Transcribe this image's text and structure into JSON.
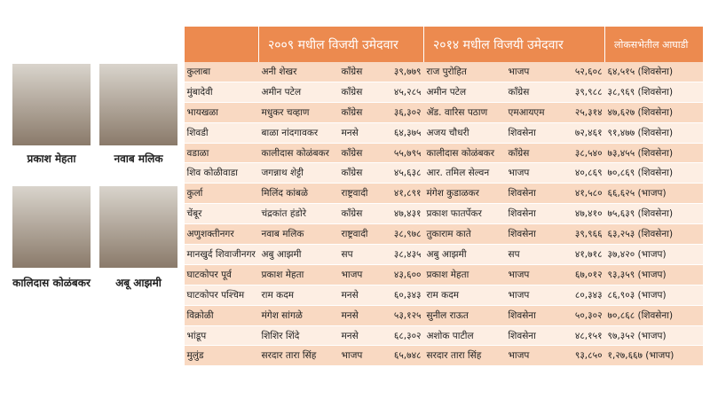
{
  "header": {
    "columns": [
      "२००९ मधील विजयी उमेदवार",
      "२०१४ मधील विजयी उमेदवार",
      "लोकसभेतील आघाडी"
    ]
  },
  "photos": [
    {
      "name": "प्रकाश मेहता"
    },
    {
      "name": "नवाब मलिक"
    },
    {
      "name": "कालिदास कोळंबकर"
    },
    {
      "name": "अबू आझमी"
    }
  ],
  "table": {
    "rows": [
      [
        "कुलाबा",
        "अनी शेखर",
        "काँग्रेस",
        "३९,७७९",
        "राज पुरोहित",
        "भाजप",
        "५२,६०८",
        "६४,५१५ (शिवसेना)"
      ],
      [
        "मुंबादेवी",
        "अमीन पटेल",
        "काँग्रेस",
        "४५,२८५",
        "अमीन पटेल",
        "काँग्रेस",
        "३९,९८८",
        "३८,९६९ (शिवसेना)"
      ],
      [
        "भायखळा",
        "मधुकर चव्हाण",
        "काँग्रेस",
        "३६,३०२",
        "ॲड. वारिस पठाण",
        "एमआयएम",
        "२५,३१४",
        "४७,६२७ (शिवसेना)"
      ],
      [
        "शिवडी",
        "बाळा नांदगावकर",
        "मनसे",
        "६४,३७५",
        "अजय चौधरी",
        "शिवसेना",
        "७२,४६१",
        "९१,४७७ (शिवसेना)"
      ],
      [
        "वडाळा",
        "कालीदास कोळंबकर",
        "काँग्रेस",
        "५५,७९५",
        "कालीदास कोळंबकर",
        "काँग्रेस",
        "३८,५४०",
        "७३,४५५ (शिवसेना)"
      ],
      [
        "शिव कोळीवाडा",
        "जगन्नाथ शेट्टी",
        "काँग्रेस",
        "४५,६३८",
        "आर. तमिल सेल्वन",
        "भाजप",
        "४०,८६९",
        "७०,८६९ (शिवसेना)"
      ],
      [
        "कुर्ला",
        "मिलिंद कांबळे",
        "राष्ट्रवादी",
        "४१,८९१",
        "मंगेश कुडाळकर",
        "शिवसेना",
        "४१,५८०",
        "६६,६२५ (भाजप)"
      ],
      [
        "चेंबूर",
        "चंद्रकांत हंडोरे",
        "काँग्रेस",
        "४७,४३१",
        "प्रकाश फातर्पेकर",
        "शिवसेना",
        "४७,४१०",
        "७५,६३९ (शिवसेना)"
      ],
      [
        "अणुशक्तीनगर",
        "नवाब मलिक",
        "राष्ट्रवादी",
        "३८,९७८",
        "तुकाराम काते",
        "शिवसेना",
        "३९,९६६",
        "६३,२५३ (शिवसेना)"
      ],
      [
        "मानखुर्द शिवाजीनगर",
        "अबु आझमी",
        "सप",
        "३८,४३५",
        "अबु आझमी",
        "सप",
        "४१,७१८",
        "३७,४२० (भाजप)"
      ],
      [
        "घाटकोपर पूर्व",
        "प्रकाश मेहता",
        "भाजप",
        "४३,६००",
        "प्रकाश मेहता",
        "भाजप",
        "६७,०१२",
        "९३,३५९ (भाजप)"
      ],
      [
        "घाटकोपर पश्चिम",
        "राम कदम",
        "मनसे",
        "६०,३४३",
        "राम कदम",
        "भाजप",
        "८०,३४३",
        "८६,९०३ (भाजप)"
      ],
      [
        "विक्रोळी",
        "मंगेश सांगळे",
        "मनसे",
        "५३,१२५",
        "सुनील राऊत",
        "शिवसेना",
        "५०,३०२",
        "७०,८६८ (शिवसेना)"
      ],
      [
        "भांडूप",
        "शिशिर शिंदे",
        "मनसे",
        "६८,३०२",
        "अशोक पाटील",
        "शिवसेना",
        "४८,१५१",
        "९७,३५२ (भाजप)"
      ],
      [
        "मुलुंड",
        "सरदार तारा सिंह",
        "भाजप",
        "६५,७४८",
        "सरदार तारा सिंह",
        "भाजप",
        "९३,८५०",
        "१,२७,६६७ (भाजप)"
      ]
    ]
  }
}
